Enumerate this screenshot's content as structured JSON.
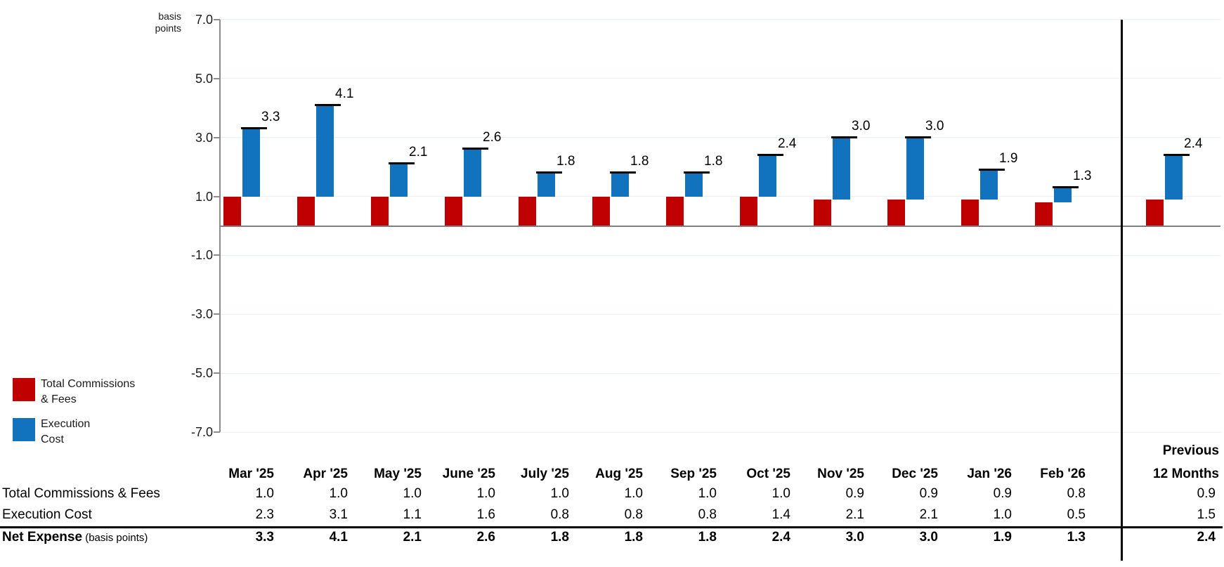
{
  "chart_data": {
    "type": "bar",
    "subtype": "stacked-waterfall-columns",
    "title": "",
    "ylabel": "basis points",
    "ylabel_lines": [
      "basis",
      "points"
    ],
    "ylim": [
      -7.0,
      7.0
    ],
    "yticks": [
      7.0,
      5.0,
      3.0,
      1.0,
      -1.0,
      -3.0,
      -5.0,
      -7.0
    ],
    "grid": true,
    "legend_position": "bottom-left",
    "categories": [
      "Mar '25",
      "Apr '25",
      "May '25",
      "June '25",
      "July '25",
      "Aug '25",
      "Sep '25",
      "Oct '25",
      "Nov '25",
      "Dec '25",
      "Jan '26",
      "Feb '26"
    ],
    "extra_category": "Previous 12 Months",
    "series": [
      {
        "name": "Total Commissions & Fees",
        "legend_lines": [
          "Total Commissions",
          "& Fees"
        ],
        "color": "#C00000",
        "values": [
          1.0,
          1.0,
          1.0,
          1.0,
          1.0,
          1.0,
          1.0,
          1.0,
          0.9,
          0.9,
          0.9,
          0.8
        ],
        "prev_value": 0.9
      },
      {
        "name": "Execution Cost",
        "legend_lines": [
          "Execution",
          "Cost"
        ],
        "color": "#1173BD",
        "values": [
          2.3,
          3.1,
          1.1,
          1.6,
          0.8,
          0.8,
          0.8,
          1.4,
          2.1,
          2.1,
          1.0,
          0.5
        ],
        "prev_value": 1.5
      }
    ],
    "totals": {
      "name": "Net Expense",
      "marker_color": "#000000",
      "values": [
        3.3,
        4.1,
        2.1,
        2.6,
        1.8,
        1.8,
        1.8,
        2.4,
        3.0,
        3.0,
        1.9,
        1.3
      ],
      "prev_value": 2.4
    }
  },
  "table": {
    "columns": [
      "Mar '25",
      "Apr '25",
      "May '25",
      "June '25",
      "July '25",
      "Aug '25",
      "Sep '25",
      "Oct '25",
      "Nov '25",
      "Dec '25",
      "Jan '26",
      "Feb '26"
    ],
    "prev_column_lines": [
      "Previous",
      "12 Months"
    ],
    "rows": [
      {
        "label": "Total Commissions & Fees",
        "bold": false,
        "values": [
          1.0,
          1.0,
          1.0,
          1.0,
          1.0,
          1.0,
          1.0,
          1.0,
          0.9,
          0.9,
          0.9,
          0.8
        ],
        "prev_value": 0.9
      },
      {
        "label": "Execution Cost",
        "bold": false,
        "values": [
          2.3,
          3.1,
          1.1,
          1.6,
          0.8,
          0.8,
          0.8,
          1.4,
          2.1,
          2.1,
          1.0,
          0.5
        ],
        "prev_value": 1.5
      },
      {
        "label": "Net Expense",
        "label_note": "(basis points)",
        "bold": true,
        "values": [
          3.3,
          4.1,
          2.1,
          2.6,
          1.8,
          1.8,
          1.8,
          2.4,
          3.0,
          3.0,
          1.9,
          1.3
        ],
        "prev_value": 2.4
      }
    ]
  }
}
